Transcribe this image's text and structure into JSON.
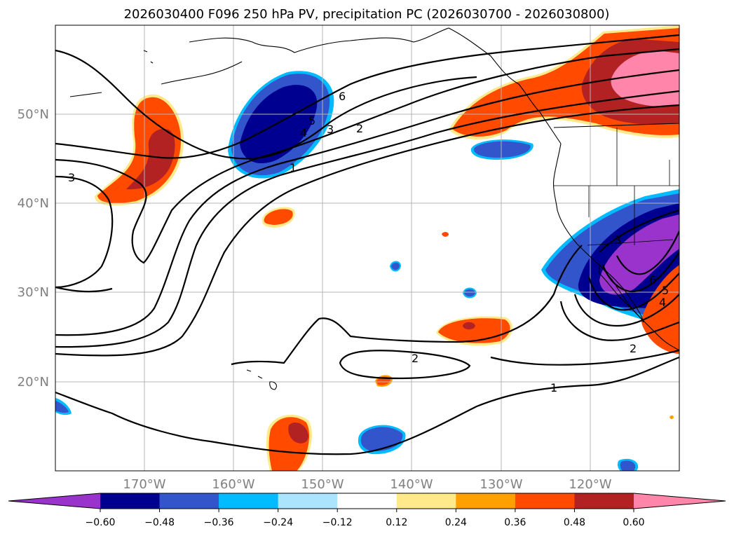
{
  "title": "2026030400 F096 250 hPa PV, precipitation PC (2026030700 - 2026030800)",
  "colors": {
    "levels": [
      "#9933cc",
      "#000090",
      "#3355cc",
      "#00bbff",
      "#aae4ff",
      "#ffffff",
      "#ffe98a",
      "#ffa000",
      "#ff4a00",
      "#b22222",
      "#ff85aa"
    ],
    "ocean": "#ffffff",
    "coast": "#000000",
    "grid": "#b4b4b4",
    "contour": "#000000"
  },
  "map": {
    "projection": "plate-carree",
    "lon_range": [
      -180,
      -110
    ],
    "lat_range": [
      10,
      60
    ],
    "grid_lons": [
      -170,
      -160,
      -150,
      -140,
      -130,
      -120
    ],
    "grid_lats": [
      20,
      30,
      40,
      50
    ]
  },
  "axes": {
    "lat_labels": [
      "20°N",
      "30°N",
      "40°N",
      "50°N"
    ],
    "lon_labels": [
      "170°W",
      "160°W",
      "150°W",
      "140°W",
      "130°W",
      "120°W"
    ]
  },
  "colorbar": {
    "ticks": [
      "−0.60",
      "−0.48",
      "−0.36",
      "−0.24",
      "−0.12",
      "0.12",
      "0.24",
      "0.36",
      "0.48",
      "0.60"
    ]
  },
  "contour_labels": [
    "3",
    "6",
    "5",
    "4",
    "3",
    "2",
    "1",
    "2",
    "1",
    "2",
    "3",
    "6",
    "5",
    "4"
  ]
}
